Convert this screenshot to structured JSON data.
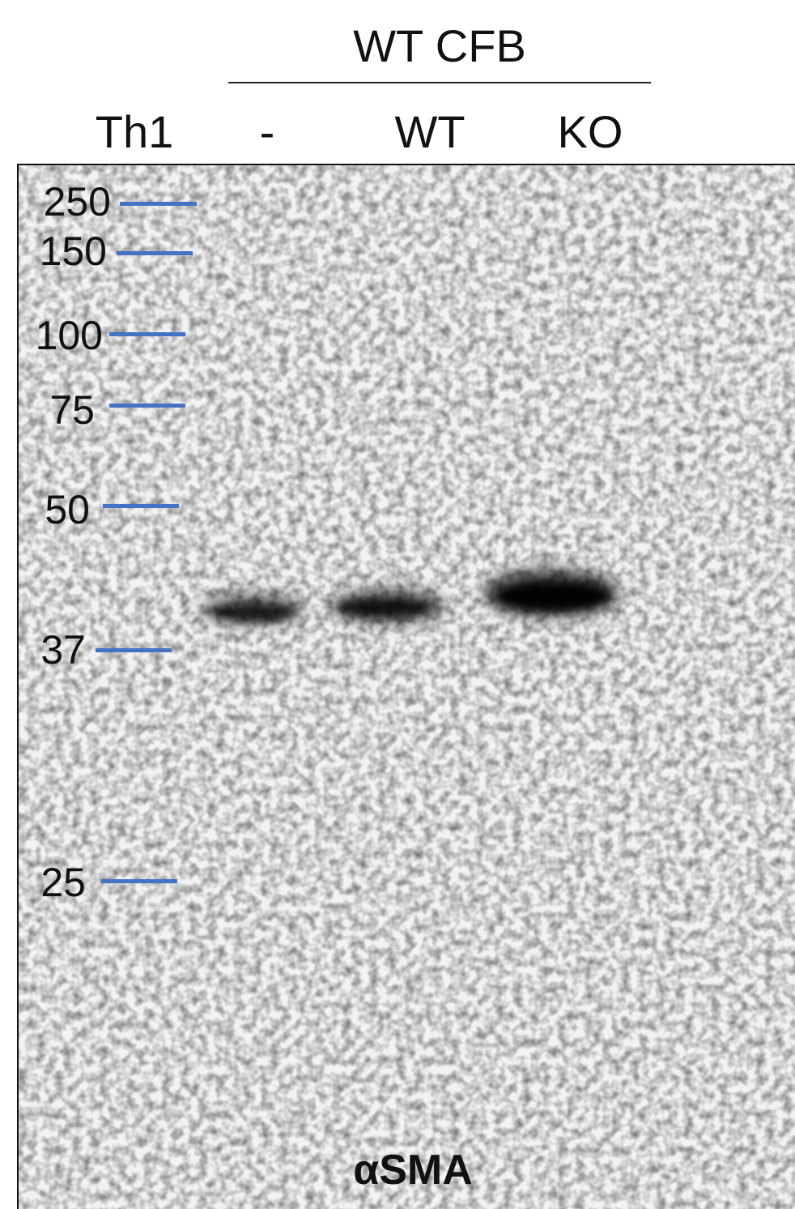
{
  "figure": {
    "group_label": "WT CFB",
    "lanes": [
      "Th1",
      "-",
      "WT",
      "KO"
    ],
    "antibody": "αSMA",
    "markers": [
      "250",
      "150",
      "100",
      "75",
      "50",
      "37",
      "25"
    ],
    "colors": {
      "marker_tick": "#4472c4",
      "band": "#000000",
      "background": "#ffffff"
    },
    "band_intensity": [
      0.0,
      0.7,
      0.75,
      1.0
    ]
  }
}
